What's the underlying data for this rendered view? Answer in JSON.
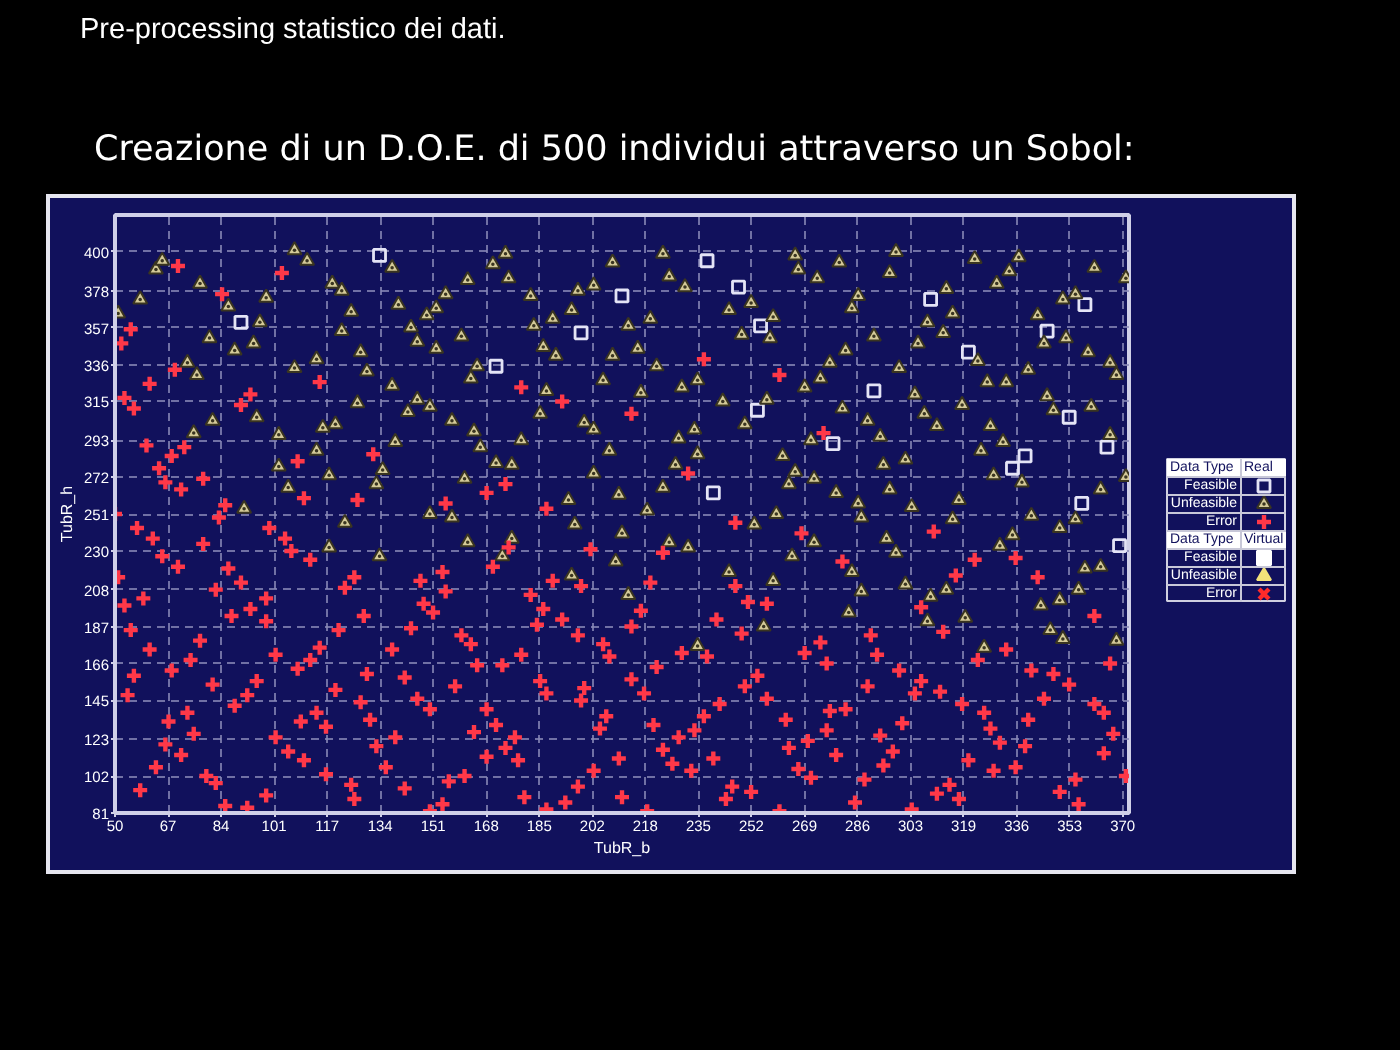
{
  "chart_data": {
    "type": "scatter",
    "title": "Pre-processing statistico dei dati.",
    "subtitle": "Creazione di un D.O.E. di 500 individui attraverso un Sobol:",
    "xlabel": "TubR_b",
    "ylabel": "TubR_h",
    "xlim": [
      50,
      372
    ],
    "ylim": [
      81,
      421
    ],
    "xticks": [
      50,
      {
        "value": 66.84,
        "label": "67"
      },
      {
        "value": 83.68,
        "label": "84"
      },
      {
        "value": 100.53,
        "label": "101"
      },
      {
        "value": 117.37,
        "label": "117"
      },
      {
        "value": 134.21,
        "label": "134"
      },
      {
        "value": 151.05,
        "label": "151"
      },
      {
        "value": 167.89,
        "label": "168"
      },
      {
        "value": 184.74,
        "label": "185"
      },
      {
        "value": 201.58,
        "label": "202"
      },
      {
        "value": 218.42,
        "label": "218"
      },
      {
        "value": 235.26,
        "label": "235"
      },
      {
        "value": 252.11,
        "label": "252"
      },
      {
        "value": 268.95,
        "label": "269"
      },
      {
        "value": 285.79,
        "label": "286"
      },
      {
        "value": 302.63,
        "label": "303"
      },
      {
        "value": 319.47,
        "label": "319"
      },
      {
        "value": 336.32,
        "label": "336"
      },
      {
        "value": 353.16,
        "label": "353"
      },
      370
    ],
    "yticks": [
      81,
      102,
      123,
      145,
      166,
      187,
      208,
      230,
      251,
      272,
      293,
      315,
      336,
      357,
      378,
      400
    ],
    "grid": true,
    "legend": "right",
    "annotations": [
      "Data Type",
      "Real",
      "Data Type",
      "Virtual"
    ],
    "series": [
      {
        "name": "Feasible",
        "color": "#e4e4f6",
        "marker": "square",
        "x": [
          90,
          134,
          171,
          198,
          238,
          211,
          248,
          255,
          254,
          240,
          291,
          278,
          309,
          321,
          346,
          358,
          353,
          339,
          335,
          365,
          357,
          369
        ],
        "values": [
          360,
          398,
          335,
          354,
          395,
          375,
          380,
          358,
          310,
          263,
          321,
          291,
          373,
          343,
          355,
          370,
          306,
          284,
          277,
          289,
          257,
          233
        ]
      },
      {
        "name": "Unfeasible",
        "color": "#d4ca98",
        "marker": "triangle",
        "x": [
          51,
          58,
          63,
          65,
          77,
          86,
          80,
          88,
          94,
          96,
          98,
          73,
          76,
          81,
          75,
          95,
          102,
          107,
          111,
          107,
          114,
          119,
          122,
          125,
          122,
          128,
          130,
          127,
          116,
          120,
          114,
          118,
          102,
          105,
          138,
          140,
          144,
          146,
          149,
          152,
          155,
          152,
          138,
          146,
          143,
          150,
          139,
          135,
          133,
          157,
          162,
          170,
          174,
          175,
          160,
          165,
          163,
          164,
          166,
          171,
          176,
          161,
          179,
          182,
          183,
          189,
          195,
          197,
          202,
          186,
          190,
          187,
          185,
          199,
          202,
          202,
          194,
          91,
          123,
          150,
          157,
          118,
          134,
          162,
          176,
          173,
          196,
          195,
          208,
          224,
          226,
          231,
          220,
          213,
          216,
          208,
          205,
          222,
          217,
          230,
          235,
          243,
          234,
          229,
          207,
          235,
          228,
          224,
          210,
          219,
          245,
          252,
          259,
          249,
          258,
          250,
          257,
          262,
          266,
          267,
          273,
          280,
          266,
          264,
          272,
          269,
          274,
          277,
          282,
          281,
          271,
          279,
          286,
          284,
          291,
          289,
          293,
          294,
          296,
          286,
          298,
          296,
          299,
          304,
          301,
          305,
          308,
          313,
          316,
          314,
          307,
          311,
          319,
          303,
          318,
          323,
          324,
          327,
          333,
          328,
          325,
          332,
          329,
          338,
          337,
          334,
          330,
          343,
          340,
          346,
          348,
          345,
          352,
          351,
          355,
          359,
          361,
          371,
          366,
          368,
          360,
          366,
          363,
          371,
          211,
          209,
          226,
          232,
          253,
          260,
          265,
          272,
          245,
          259,
          213,
          256,
          235,
          287,
          295,
          298,
          284,
          287,
          301,
          283,
          309,
          314,
          308,
          320,
          316,
          326,
          331,
          335,
          341,
          350,
          355,
          358,
          363,
          356,
          350,
          344,
          347,
          351,
          368
        ],
        "values": [
          365,
          373,
          390,
          395,
          382,
          369,
          351,
          344,
          348,
          360,
          374,
          337,
          330,
          304,
          297,
          306,
          296,
          401,
          395,
          334,
          339,
          382,
          378,
          366,
          355,
          343,
          332,
          314,
          300,
          302,
          287,
          273,
          278,
          266,
          391,
          370,
          357,
          349,
          364,
          368,
          376,
          345,
          324,
          316,
          309,
          312,
          292,
          276,
          268,
          304,
          384,
          393,
          399,
          385,
          352,
          335,
          328,
          298,
          289,
          280,
          279,
          271,
          293,
          375,
          358,
          362,
          367,
          378,
          381,
          346,
          341,
          321,
          308,
          303,
          299,
          274,
          259,
          254,
          246,
          251,
          249,
          232,
          227,
          235,
          237,
          227,
          245,
          216,
          394,
          399,
          386,
          380,
          362,
          358,
          345,
          341,
          327,
          335,
          320,
          323,
          327,
          315,
          299,
          294,
          287,
          285,
          279,
          266,
          262,
          253,
          367,
          371,
          363,
          353,
          351,
          302,
          316,
          284,
          398,
          390,
          385,
          394,
          275,
          268,
          271,
          323,
          328,
          337,
          344,
          311,
          293,
          263,
          375,
          368,
          352,
          304,
          295,
          279,
          265,
          257,
          400,
          388,
          334,
          319,
          282,
          348,
          360,
          354,
          365,
          379,
          308,
          301,
          313,
          255,
          259,
          396,
          338,
          326,
          326,
          301,
          287,
          292,
          273,
          269,
          397,
          389,
          382,
          364,
          333,
          318,
          310,
          348,
          351,
          373,
          376,
          343,
          391,
          385,
          337,
          330,
          312,
          296,
          265,
          272,
          240,
          224,
          235,
          232,
          245,
          251,
          227,
          235,
          218,
          213,
          205,
          187,
          176,
          249,
          237,
          229,
          218,
          207,
          211,
          195,
          204,
          208,
          190,
          192,
          248,
          175,
          233,
          239,
          250,
          243,
          248,
          220,
          221,
          208,
          202,
          199,
          185,
          180,
          179
        ]
      },
      {
        "name": "Error",
        "color": "#ff3848",
        "marker": "cross",
        "x": [
          52,
          55,
          70,
          84,
          103,
          61,
          69,
          53,
          56,
          93,
          90,
          115,
          60,
          68,
          72,
          64,
          66,
          71,
          78,
          108,
          132,
          127,
          110,
          85,
          179,
          192,
          174,
          168,
          155,
          187,
          50,
          57,
          62,
          65,
          70,
          78,
          83,
          86,
          90,
          82,
          59,
          53,
          51,
          55,
          61,
          56,
          54,
          87,
          93,
          98,
          98,
          77,
          74,
          81,
          68,
          67,
          73,
          66,
          75,
          71,
          63,
          79,
          82,
          58,
          85,
          92,
          98,
          88,
          92,
          95,
          99,
          104,
          106,
          112,
          101,
          108,
          112,
          115,
          101,
          105,
          109,
          114,
          110,
          117,
          117,
          120,
          121,
          123,
          126,
          129,
          130,
          131,
          128,
          133,
          136,
          125,
          126,
          138,
          139,
          142,
          142,
          144,
          146,
          148,
          147,
          151,
          150,
          150,
          154,
          156,
          161,
          154,
          155,
          158,
          160,
          163,
          165,
          164,
          168,
          168,
          173,
          171,
          174,
          177,
          178,
          170,
          175,
          179,
          182,
          180,
          186,
          184,
          185,
          187,
          187,
          192,
          189,
          193,
          197,
          198,
          198,
          197,
          199,
          202,
          201,
          237,
          261,
          214,
          275,
          232,
          205,
          207,
          214,
          217,
          220,
          224,
          230,
          238,
          222,
          214,
          218,
          206,
          204,
          221,
          210,
          211,
          219,
          224,
          227,
          229,
          234,
          237,
          233,
          240,
          242,
          241,
          249,
          247,
          251,
          257,
          247,
          268,
          250,
          254,
          257,
          246,
          244,
          252,
          261,
          263,
          264,
          270,
          267,
          271,
          269,
          274,
          276,
          277,
          276,
          279,
          282,
          281,
          288,
          285,
          289,
          290,
          292,
          293,
          294,
          297,
          299,
          300,
          304,
          306,
          303,
          306,
          310,
          311,
          315,
          318,
          313,
          317,
          312,
          319,
          321,
          324,
          323,
          326,
          328,
          331,
          329,
          336,
          336,
          333,
          339,
          340,
          341,
          343,
          345,
          348,
          350,
          353,
          355,
          356,
          361,
          361,
          364,
          364,
          366,
          367,
          371
        ],
        "values": [
          348,
          356,
          392,
          376,
          388,
          325,
          333,
          317,
          311,
          319,
          313,
          326,
          290,
          284,
          289,
          277,
          269,
          265,
          271,
          281,
          285,
          259,
          260,
          256,
          323,
          315,
          268,
          263,
          257,
          254,
          251,
          243,
          237,
          227,
          221,
          234,
          249,
          220,
          212,
          208,
          203,
          199,
          215,
          185,
          174,
          159,
          148,
          193,
          197,
          203,
          190,
          179,
          168,
          154,
          162,
          133,
          138,
          120,
          126,
          114,
          107,
          102,
          98,
          94,
          85,
          84,
          91,
          142,
          148,
          156,
          243,
          237,
          230,
          225,
          171,
          163,
          168,
          175,
          124,
          116,
          133,
          138,
          111,
          130,
          103,
          151,
          185,
          209,
          215,
          193,
          160,
          134,
          144,
          119,
          107,
          97,
          89,
          174,
          124,
          95,
          158,
          186,
          146,
          200,
          213,
          195,
          140,
          82,
          86,
          99,
          102,
          218,
          207,
          153,
          182,
          177,
          165,
          127,
          140,
          113,
          165,
          131,
          118,
          124,
          111,
          221,
          232,
          171,
          205,
          90,
          197,
          188,
          156,
          149,
          83,
          191,
          213,
          87,
          96,
          210,
          145,
          182,
          152,
          105,
          231,
          339,
          330,
          308,
          297,
          274,
          177,
          170,
          187,
          196,
          212,
          229,
          172,
          170,
          164,
          157,
          149,
          136,
          129,
          131,
          112,
          90,
          82,
          117,
          109,
          124,
          128,
          136,
          105,
          112,
          143,
          191,
          183,
          210,
          201,
          200,
          246,
          240,
          153,
          159,
          146,
          96,
          89,
          93,
          82,
          134,
          118,
          122,
          106,
          101,
          172,
          178,
          166,
          139,
          128,
          114,
          140,
          224,
          100,
          87,
          153,
          182,
          171,
          125,
          108,
          116,
          162,
          132,
          149,
          156,
          83,
          198,
          241,
          92,
          97,
          89,
          184,
          216,
          150,
          143,
          111,
          168,
          225,
          138,
          129,
          121,
          105,
          226,
          107,
          174,
          119,
          134,
          162,
          215,
          146,
          160,
          93,
          154,
          100,
          86,
          143,
          193,
          115,
          138,
          166,
          126,
          102
        ]
      },
      {
        "name": "Feasible",
        "color": "#ffffff",
        "marker": "square"
      },
      {
        "name": "Unfeasible",
        "color": "#f2e27a",
        "marker": "triangle"
      },
      {
        "name": "Error",
        "color": "#ff2a2a",
        "marker": "x"
      }
    ]
  }
}
